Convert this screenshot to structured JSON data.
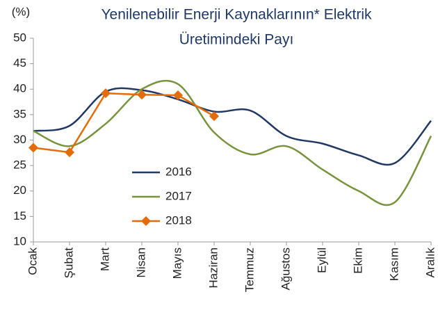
{
  "chart_data": {
    "type": "line",
    "title": [
      "Yenilenebilir Enerji Kaynaklarının* Elektrik",
      "Üretimindeki Payı"
    ],
    "y_label": "(%)",
    "categories": [
      "Ocak",
      "Şubat",
      "Mart",
      "Nisan",
      "Mayıs",
      "Haziran",
      "Temmuz",
      "Ağustos",
      "Eylül",
      "Ekim",
      "Kasım",
      "Aralık"
    ],
    "series": [
      {
        "name": "2016",
        "color": "#1f3864",
        "smooth": true,
        "marker": false,
        "values": [
          31.8,
          32.8,
          39.5,
          39.8,
          38.0,
          35.6,
          35.8,
          30.8,
          29.3,
          27.0,
          25.5,
          33.8
        ]
      },
      {
        "name": "2017",
        "color": "#77933c",
        "smooth": true,
        "marker": false,
        "values": [
          31.8,
          28.8,
          33.2,
          40.0,
          41.0,
          31.5,
          27.2,
          28.8,
          24.2,
          20.0,
          17.8,
          30.8
        ]
      },
      {
        "name": "2018",
        "color": "#e36c09",
        "smooth": false,
        "marker": true,
        "values": [
          28.5,
          27.6,
          39.2,
          38.9,
          38.8,
          34.7,
          null,
          null,
          null,
          null,
          null,
          null
        ]
      }
    ],
    "ylim": [
      10,
      50
    ],
    "yticks": [
      10,
      15,
      20,
      25,
      30,
      35,
      40,
      45,
      50
    ],
    "grid": false
  }
}
